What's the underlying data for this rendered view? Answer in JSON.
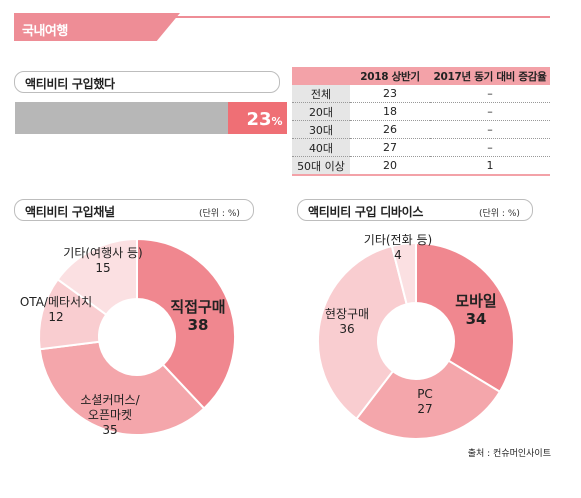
{
  "header": {
    "title": "국내여행"
  },
  "purchase": {
    "title": "액티비티 구입했다",
    "value_label": "23",
    "unit": "%",
    "value": 23
  },
  "table": {
    "headers": [
      "",
      "2018 상반기",
      "2017년 동기 대비 증감율"
    ],
    "rows": [
      [
        "전체",
        "23",
        "–"
      ],
      [
        "20대",
        "18",
        "–"
      ],
      [
        "30대",
        "26",
        "–"
      ],
      [
        "40대",
        "27",
        "–"
      ],
      [
        "50대 이상",
        "20",
        "1"
      ]
    ]
  },
  "channel": {
    "title": "액티비티 구입채널",
    "unit": "(단위 : %)"
  },
  "device": {
    "title": "액티비티 구입 디바이스",
    "unit": "(단위 : %)"
  },
  "colors": {
    "accent": "#ee8d96",
    "bar_track": "#b7b7b7",
    "bar_fill": "#ef6f75",
    "slice_dark": "#f0878f",
    "slice_mid": "#f4a6ab",
    "slice_light": "#f9cdd0",
    "slice_pale": "#fbe0e2"
  },
  "chart_data": [
    {
      "type": "pie",
      "title": "액티비티 구입채널",
      "categories": [
        "직접구매",
        "소셜커머스/오픈마켓",
        "OTA/메타서치",
        "기타(여행사 등)"
      ],
      "values": [
        38,
        35,
        12,
        15
      ]
    },
    {
      "type": "pie",
      "title": "액티비티 구입 디바이스",
      "categories": [
        "모바일",
        "PC",
        "현장구매",
        "기타(전화 등)"
      ],
      "values": [
        34,
        27,
        36,
        4
      ]
    }
  ],
  "source": "출처 : 컨슈머인사이트"
}
